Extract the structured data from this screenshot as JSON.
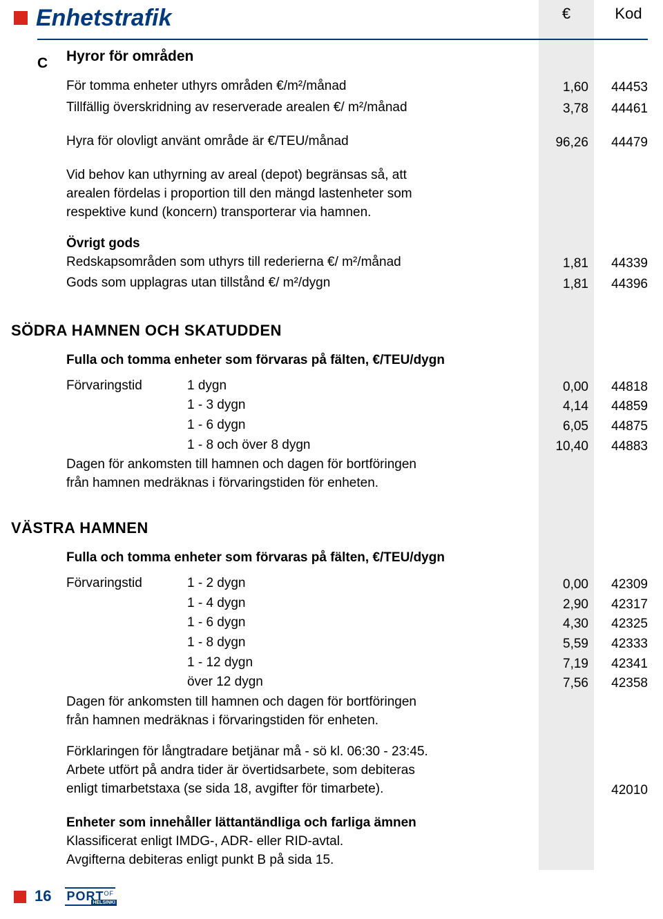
{
  "header": {
    "title": "Enhetstrafik",
    "euro_symbol": "€",
    "kod_label": "Kod"
  },
  "section_marker": "C",
  "section_title": "Hyror för områden",
  "rows1": [
    {
      "desc": "För tomma enheter uthyrs områden €/m²/månad",
      "euro": "1,60",
      "kod": "44453"
    },
    {
      "desc": "Tillfällig överskridning av reserverade arealen €/ m²/månad",
      "euro": "3,78",
      "kod": "44461"
    }
  ],
  "rows2": [
    {
      "desc": "Hyra för olovligt använt område är €/TEU/månad",
      "euro": "96,26",
      "kod": "44479"
    }
  ],
  "depot_note_l1": "Vid behov kan uthyrning av areal (depot) begränsas så, att",
  "depot_note_l2": "arealen fördelas i proportion till den mängd lastenheter som",
  "depot_note_l3": "respektive kund (koncern) transporterar via hamnen.",
  "ovrigt_title": "Övrigt gods",
  "rows3": [
    {
      "desc": "Redskapsområden som uthyrs till rederierna €/ m²/månad",
      "euro": "1,81",
      "kod": "44339"
    },
    {
      "desc": "Gods som upplagras utan tillstånd €/ m²/dygn",
      "euro": "1,81",
      "kod": "44396"
    }
  ],
  "sodra_heading": "SÖDRA HAMNEN OCH SKATUDDEN",
  "storage_title_sodra": "Fulla och tomma enheter som förvaras på fälten, €/TEU/dygn",
  "storage_label": "Förvaringstid",
  "sodra_rows": [
    {
      "period": "1 dygn",
      "euro": "0,00",
      "kod": "44818"
    },
    {
      "period": "1 - 3 dygn",
      "euro": "4,14",
      "kod": "44859"
    },
    {
      "period": "1 - 6 dygn",
      "euro": "6,05",
      "kod": "44875"
    },
    {
      "period": "1 - 8 och över 8 dygn",
      "euro": "10,40",
      "kod": "44883"
    }
  ],
  "day_note_l1": "Dagen för ankomsten till hamnen och dagen för bortföringen",
  "day_note_l2": "från hamnen medräknas i förvaringstiden för enheten.",
  "vastra_heading": "VÄSTRA HAMNEN",
  "storage_title_vastra": "Fulla och tomma enheter som förvaras på fälten, €/TEU/dygn",
  "vastra_rows": [
    {
      "period": "1 - 2 dygn",
      "euro": "0,00",
      "kod": "42309"
    },
    {
      "period": "1 - 4 dygn",
      "euro": "2,90",
      "kod": "42317"
    },
    {
      "period": "1 - 6 dygn",
      "euro": "4,30",
      "kod": "42325"
    },
    {
      "period": "1 - 8 dygn",
      "euro": "5,59",
      "kod": "42333"
    },
    {
      "period": "1 - 12 dygn",
      "euro": "7,19",
      "kod": "42341"
    },
    {
      "period": "över 12 dygn",
      "euro": "7,56",
      "kod": "42358"
    }
  ],
  "expl_l1": "Förklaringen för långtradare betjänar må - sö kl. 06:30 - 23:45.",
  "expl_l2": "Arbete utfört på andra tider är övertidsarbete, som debiteras",
  "expl_l3": "enligt timarbetstaxa (se sida 18, avgifter för timarbete).",
  "expl_kod": "42010",
  "hazard_title": "Enheter som innehåller lättantändliga och farliga ämnen",
  "hazard_l1": "Klassificerat enligt IMDG-, ADR- eller RID-avtal.",
  "hazard_l2": "Avgifterna debiteras enligt punkt B på sida 15.",
  "footer": {
    "page": "16",
    "logo_main": "PORT",
    "logo_of": "OF",
    "logo_sub": "HELSINKI"
  },
  "colors": {
    "accent_blue": "#003a7a",
    "accent_red": "#d9261c",
    "grey_col": "#ebebeb"
  }
}
